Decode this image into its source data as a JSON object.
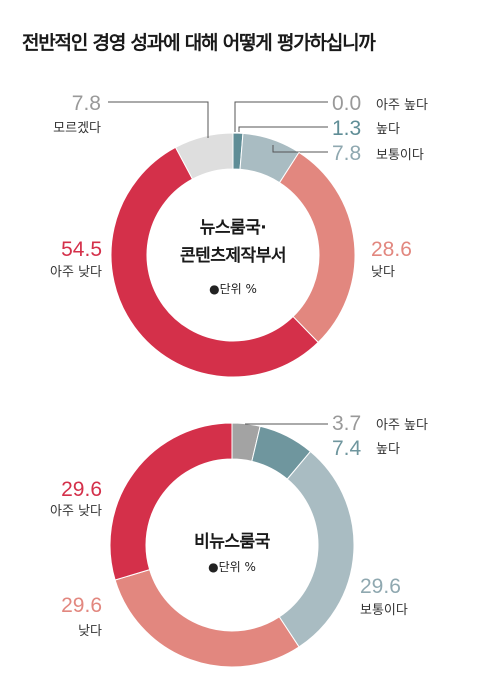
{
  "title": "전반적인 경영 성과에 대해 어떻게 평가하십니까",
  "chart_data": [
    {
      "type": "pie",
      "donut": true,
      "center_label_lines": [
        "뉴스룸국·",
        "콘텐츠제작부서"
      ],
      "unit_label": "●단위 %",
      "slices": [
        {
          "label": "아주 높다",
          "value": 0.0,
          "color": "#5f8d96",
          "value_color": "#999999"
        },
        {
          "label": "높다",
          "value": 1.3,
          "color": "#5f8d96",
          "value_color": "#5f8d96"
        },
        {
          "label": "보통이다",
          "value": 7.8,
          "color": "#a9bcc2",
          "value_color": "#8fa8b0"
        },
        {
          "label": "낮다",
          "value": 28.6,
          "color": "#e2877f",
          "value_color": "#e2877f"
        },
        {
          "label": "아주 낮다",
          "value": 54.5,
          "color": "#d4304a",
          "value_color": "#d4304a"
        },
        {
          "label": "모르겠다",
          "value": 7.8,
          "color": "#dedede",
          "value_color": "#999999"
        }
      ]
    },
    {
      "type": "pie",
      "donut": true,
      "center_label_lines": [
        "비뉴스룸국"
      ],
      "unit_label": "●단위 %",
      "slices": [
        {
          "label": "아주 높다",
          "value": 3.7,
          "color": "#a3a3a3",
          "value_color": "#999999"
        },
        {
          "label": "높다",
          "value": 7.4,
          "color": "#6f969e",
          "value_color": "#6f969e"
        },
        {
          "label": "보통이다",
          "value": 29.6,
          "color": "#a9bcc2",
          "value_color": "#8fa8b0"
        },
        {
          "label": "낮다",
          "value": 29.6,
          "color": "#e2877f",
          "value_color": "#e2877f"
        },
        {
          "label": "아주 낮다",
          "value": 29.6,
          "color": "#d4304a",
          "value_color": "#d4304a"
        }
      ]
    }
  ]
}
